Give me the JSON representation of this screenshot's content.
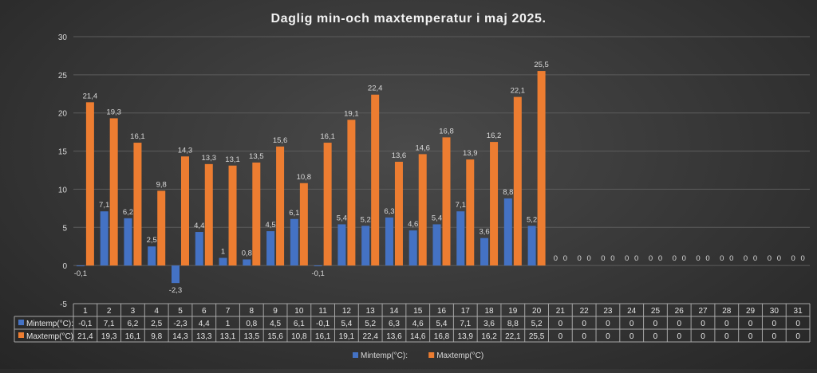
{
  "chart_data": {
    "type": "bar",
    "title": "Daglig min-och maxtemperatur i maj 2025.",
    "categories": [
      "1",
      "2",
      "3",
      "4",
      "5",
      "6",
      "7",
      "8",
      "9",
      "10",
      "11",
      "12",
      "13",
      "14",
      "15",
      "16",
      "17",
      "18",
      "19",
      "20",
      "21",
      "22",
      "23",
      "24",
      "25",
      "26",
      "27",
      "28",
      "29",
      "30",
      "31"
    ],
    "series": [
      {
        "name": "Mintemp(°C):",
        "color": "#4472c4",
        "values": [
          -0.1,
          7.1,
          6.2,
          2.5,
          -2.3,
          4.4,
          1,
          0.8,
          4.5,
          6.1,
          -0.1,
          5.4,
          5.2,
          6.3,
          4.6,
          5.4,
          7.1,
          3.6,
          8.8,
          5.2,
          0,
          0,
          0,
          0,
          0,
          0,
          0,
          0,
          0,
          0,
          0
        ],
        "labels": [
          "-0,1",
          "7,1",
          "6,2",
          "2,5",
          "-2,3",
          "4,4",
          "1",
          "0,8",
          "4,5",
          "6,1",
          "-0,1",
          "5,4",
          "5,2",
          "6,3",
          "4,6",
          "5,4",
          "7,1",
          "3,6",
          "8,8",
          "5,2",
          "0",
          "0",
          "0",
          "0",
          "0",
          "0",
          "0",
          "0",
          "0",
          "0",
          "0"
        ]
      },
      {
        "name": "Maxtemp(°C)",
        "color": "#ed7d31",
        "values": [
          21.4,
          19.3,
          16.1,
          9.8,
          14.3,
          13.3,
          13.1,
          13.5,
          15.6,
          10.8,
          16.1,
          19.1,
          22.4,
          13.6,
          14.6,
          16.8,
          13.9,
          16.2,
          22.1,
          25.5,
          0,
          0,
          0,
          0,
          0,
          0,
          0,
          0,
          0,
          0,
          0
        ],
        "labels": [
          "21,4",
          "19,3",
          "16,1",
          "9,8",
          "14,3",
          "13,3",
          "13,1",
          "13,5",
          "15,6",
          "10,8",
          "16,1",
          "19,1",
          "22,4",
          "13,6",
          "14,6",
          "16,8",
          "13,9",
          "16,2",
          "22,1",
          "25,5",
          "0",
          "0",
          "0",
          "0",
          "0",
          "0",
          "0",
          "0",
          "0",
          "0",
          "0"
        ]
      }
    ],
    "ylim": [
      -5,
      30
    ],
    "yticks": [
      "-5",
      "0",
      "5",
      "10",
      "15",
      "20",
      "25",
      "30"
    ],
    "grid": true,
    "legend": "bottom",
    "data_table": true
  }
}
